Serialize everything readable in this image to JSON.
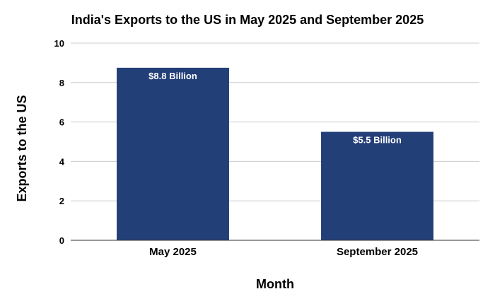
{
  "chart_data": {
    "type": "bar",
    "title": "India's Exports to the US in May 2025 and September 2025",
    "xlabel": "Month",
    "ylabel": "Exports to the US",
    "categories": [
      "May 2025",
      "September 2025"
    ],
    "values": [
      8.75,
      5.5
    ],
    "data_labels": [
      "$8.8 Billion",
      "$5.5 Billion"
    ],
    "ylim": [
      0,
      10
    ],
    "yticks": [
      0,
      2,
      4,
      6,
      8,
      10
    ],
    "grid": true,
    "legend": "none",
    "bar_color": "#233f78"
  }
}
